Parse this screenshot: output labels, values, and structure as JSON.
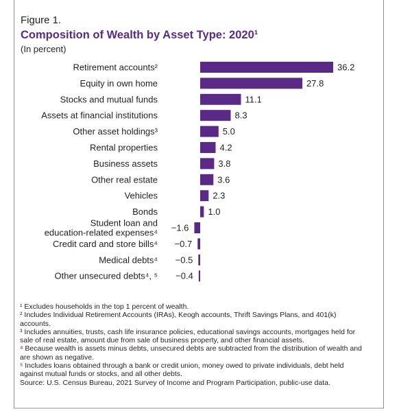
{
  "chart_data": {
    "type": "bar",
    "orientation": "horizontal",
    "figure_label": "Figure 1.",
    "title": "Composition of Wealth by Asset Type: 2020¹",
    "subtitle": "(In percent)",
    "categories": [
      "Retirement accounts²",
      "Equity in own home",
      "Stocks and mutual funds",
      "Assets at financial institutions",
      "Other asset holdings³",
      "Rental properties",
      "Business assets",
      "Other real estate",
      "Vehicles",
      "Bonds",
      "Student loan and\neducation-related expenses⁴",
      "Credit card and store bills⁴",
      "Medical debts⁴",
      "Other unsecured debts⁴, ⁵"
    ],
    "values": [
      36.2,
      27.8,
      11.1,
      8.3,
      5.0,
      4.2,
      3.8,
      3.6,
      2.3,
      1.0,
      -1.6,
      -0.7,
      -0.5,
      -0.4
    ],
    "value_labels": [
      "36.2",
      "27.8",
      "11.1",
      "8.3",
      "5.0",
      "4.2",
      "3.8",
      "3.6",
      "2.3",
      "1.0",
      "−1.6",
      "−0.7",
      "−0.5",
      "−0.4"
    ],
    "color": "#5b2a86",
    "footnotes": [
      "¹ Excludes households in the top 1 percent of wealth.",
      "² Includes Individual Retirement Accounts (IRAs), Keogh accounts, Thrift Savings Plans, and 401(k) accounts.",
      "³ Includes annuities, trusts, cash life insurance policies, educational savings accounts, mortgages held for sale of real estate, amount due from sale of business property, and other financial assets.",
      "⁴ Because wealth is assets minus debts, unsecured debts are subtracted from the distribution of wealth and are shown as negative.",
      "⁵ Includes loans obtained through a bank or credit union, money owed to private individuals, debt held against mutual funds or stocks, and all other debts."
    ],
    "source": "Source: U.S. Census Bureau, 2021 Survey of Income and Program Participation, public-use data."
  }
}
